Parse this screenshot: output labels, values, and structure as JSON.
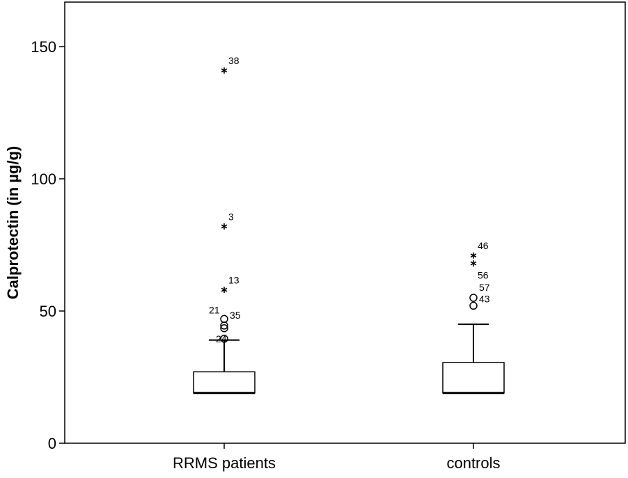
{
  "chart_data": {
    "type": "boxplot",
    "title": "",
    "xlabel": "",
    "ylabel": "Calprotectin (in µg/g)",
    "ylim": [
      0,
      167
    ],
    "yticks": [
      0,
      50,
      100,
      150
    ],
    "grid": false,
    "categories": [
      "RRMS patients",
      "controls"
    ],
    "boxes": [
      {
        "category": "RRMS patients",
        "whisker_low": 19,
        "q1": 19,
        "median": 19,
        "q3": 27,
        "whisker_high": 39,
        "outliers": [
          {
            "value": 47,
            "label": "21",
            "marker": "circle"
          },
          {
            "value": 44.5,
            "label": "35",
            "marker": "circle"
          },
          {
            "value": 43.5,
            "label": "",
            "marker": "circle"
          },
          {
            "value": 39.5,
            "label": "24",
            "marker": "circle"
          }
        ],
        "extremes": [
          {
            "value": 141,
            "label": "38",
            "marker": "star"
          },
          {
            "value": 82,
            "label": "3",
            "marker": "star"
          },
          {
            "value": 58,
            "label": "13",
            "marker": "star"
          }
        ]
      },
      {
        "category": "controls",
        "whisker_low": 19,
        "q1": 19,
        "median": 19,
        "q3": 30.5,
        "whisker_high": 45,
        "outliers": [
          {
            "value": 55,
            "label": "57",
            "marker": "circle"
          },
          {
            "value": 52,
            "label": "43",
            "marker": "circle"
          }
        ],
        "extremes": [
          {
            "value": 71,
            "label": "46",
            "marker": "star"
          },
          {
            "value": 68,
            "label": "56",
            "marker": "star"
          }
        ]
      }
    ]
  }
}
